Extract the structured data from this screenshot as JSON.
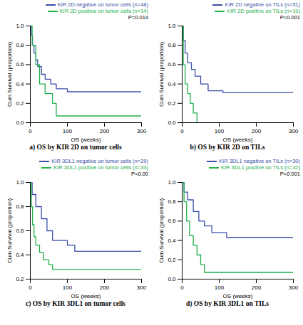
{
  "chart_data": [
    {
      "type": "line",
      "title": "a) OS by KIR 2D on tumor cells",
      "x_label": "OS (weeks)",
      "y_label": "Cum Survival (proportion)",
      "xlim": [
        0,
        300
      ],
      "xticks": [
        0,
        100,
        200,
        300
      ],
      "ylim": [
        0,
        1
      ],
      "yticks": [
        {
          "value": 0,
          "label": "0.0"
        },
        {
          "value": 0.2,
          "label": "0.2"
        },
        {
          "value": 0.4,
          "label": "0.4"
        },
        {
          "value": 0.6,
          "label": "0.6"
        },
        {
          "value": 0.8,
          "label": "0.8"
        },
        {
          "value": 1,
          "label": "1.0"
        }
      ],
      "legend": "top-right",
      "line_style": "step",
      "annotations": [
        "P=0.014"
      ],
      "series": [
        {
          "name": "KIR 2D negative on tumor cells (n=48)",
          "color": "#3b4fa8",
          "x": [
            0,
            3,
            6,
            10,
            15,
            20,
            30,
            40,
            55,
            70,
            100,
            300
          ],
          "values": [
            1,
            0.9,
            0.8,
            0.72,
            0.65,
            0.58,
            0.5,
            0.45,
            0.4,
            0.35,
            0.32,
            0.32
          ]
        },
        {
          "name": "KIR 2D positive on tumor cells (n=14)",
          "color": "#22b14c",
          "x": [
            0,
            5,
            15,
            25,
            40,
            60,
            70,
            300
          ],
          "values": [
            1,
            0.8,
            0.6,
            0.4,
            0.3,
            0.2,
            0.07,
            0.07
          ]
        }
      ]
    },
    {
      "type": "line",
      "title": "b) OS by KIR 2D on TILs",
      "x_label": "OS (weeks)",
      "y_label": "Cum Survival (proportion)",
      "xlim": [
        0,
        300
      ],
      "xticks": [
        0,
        100,
        200,
        300
      ],
      "ylim": [
        0,
        1
      ],
      "yticks": [
        {
          "value": 0,
          "label": "0.0"
        },
        {
          "value": 0.2,
          "label": "0.2"
        },
        {
          "value": 0.4,
          "label": "0.4"
        },
        {
          "value": 0.6,
          "label": "0.6"
        },
        {
          "value": 0.8,
          "label": "0.8"
        },
        {
          "value": 1,
          "label": "1.0"
        }
      ],
      "legend": "top-right",
      "line_style": "step",
      "annotations": [
        "P<0.001"
      ],
      "series": [
        {
          "name": "KIR 2D negative on TILs (n=51)",
          "color": "#3b4fa8",
          "x": [
            0,
            3,
            8,
            15,
            25,
            35,
            50,
            70,
            110,
            300
          ],
          "values": [
            1,
            0.85,
            0.72,
            0.62,
            0.55,
            0.48,
            0.4,
            0.33,
            0.31,
            0.31
          ]
        },
        {
          "name": "KIR 2D positive on TILs (n=10)",
          "color": "#22b14c",
          "x": [
            0,
            3,
            8,
            15,
            22,
            30,
            40
          ],
          "values": [
            1,
            0.6,
            0.4,
            0.3,
            0.2,
            0.1,
            0
          ]
        }
      ]
    },
    {
      "type": "line",
      "title": "c) OS by KIR 3DL1 on tumor cells",
      "x_label": "OS (weeks)",
      "y_label": "Cum Survival (proportion)",
      "xlim": [
        0,
        300
      ],
      "xticks": [
        0,
        100,
        200,
        300
      ],
      "ylim": [
        0.2,
        1
      ],
      "yticks": [
        {
          "value": 0.2,
          "label": "0.2"
        },
        {
          "value": 0.4,
          "label": "0.4"
        },
        {
          "value": 0.6,
          "label": "0.6"
        },
        {
          "value": 0.8,
          "label": "0.8"
        },
        {
          "value": 1,
          "label": "1.0"
        }
      ],
      "legend": "top-right",
      "line_style": "step",
      "annotations": [
        "P<0.00"
      ],
      "series": [
        {
          "name": "KIR 3DL1 negative on tumor cells (n=29)",
          "color": "#3b4fa8",
          "x": [
            0,
            5,
            15,
            30,
            45,
            60,
            100,
            120,
            300
          ],
          "values": [
            1,
            0.9,
            0.8,
            0.7,
            0.6,
            0.52,
            0.48,
            0.43,
            0.43
          ]
        },
        {
          "name": "KIR 3DL1 positive on tumor cells (n=33)",
          "color": "#22b14c",
          "x": [
            0,
            3,
            6,
            10,
            15,
            25,
            35,
            50,
            60,
            300
          ],
          "values": [
            1,
            0.8,
            0.65,
            0.55,
            0.48,
            0.42,
            0.36,
            0.32,
            0.28,
            0.28
          ]
        }
      ]
    },
    {
      "type": "line",
      "title": "d) OS by KIR 3DL1 on TILs",
      "x_label": "OS (weeks)",
      "y_label": "Cum Survival (proportion)",
      "xlim": [
        0,
        300
      ],
      "xticks": [
        0,
        100,
        200,
        300
      ],
      "ylim": [
        0,
        1
      ],
      "yticks": [
        {
          "value": 0,
          "label": "0.0"
        },
        {
          "value": 0.2,
          "label": "0.2"
        },
        {
          "value": 0.4,
          "label": "0.4"
        },
        {
          "value": 0.6,
          "label": "0.6"
        },
        {
          "value": 0.8,
          "label": "0.8"
        },
        {
          "value": 1,
          "label": "1.0"
        }
      ],
      "legend": "top-right",
      "line_style": "step",
      "annotations": [
        "P<0.001"
      ],
      "series": [
        {
          "name": "KIR 3DL1 negative on TILs (n=30)",
          "color": "#3b4fa8",
          "x": [
            0,
            5,
            15,
            30,
            45,
            60,
            80,
            120,
            300
          ],
          "values": [
            1,
            0.9,
            0.82,
            0.7,
            0.6,
            0.55,
            0.48,
            0.43,
            0.43
          ]
        },
        {
          "name": "KIR 3DL1 positive on TILs (n=32)",
          "color": "#22b14c",
          "x": [
            0,
            5,
            12,
            20,
            30,
            40,
            50,
            60,
            300
          ],
          "values": [
            1,
            0.8,
            0.6,
            0.45,
            0.35,
            0.25,
            0.15,
            0.07,
            0.07
          ]
        }
      ]
    }
  ]
}
